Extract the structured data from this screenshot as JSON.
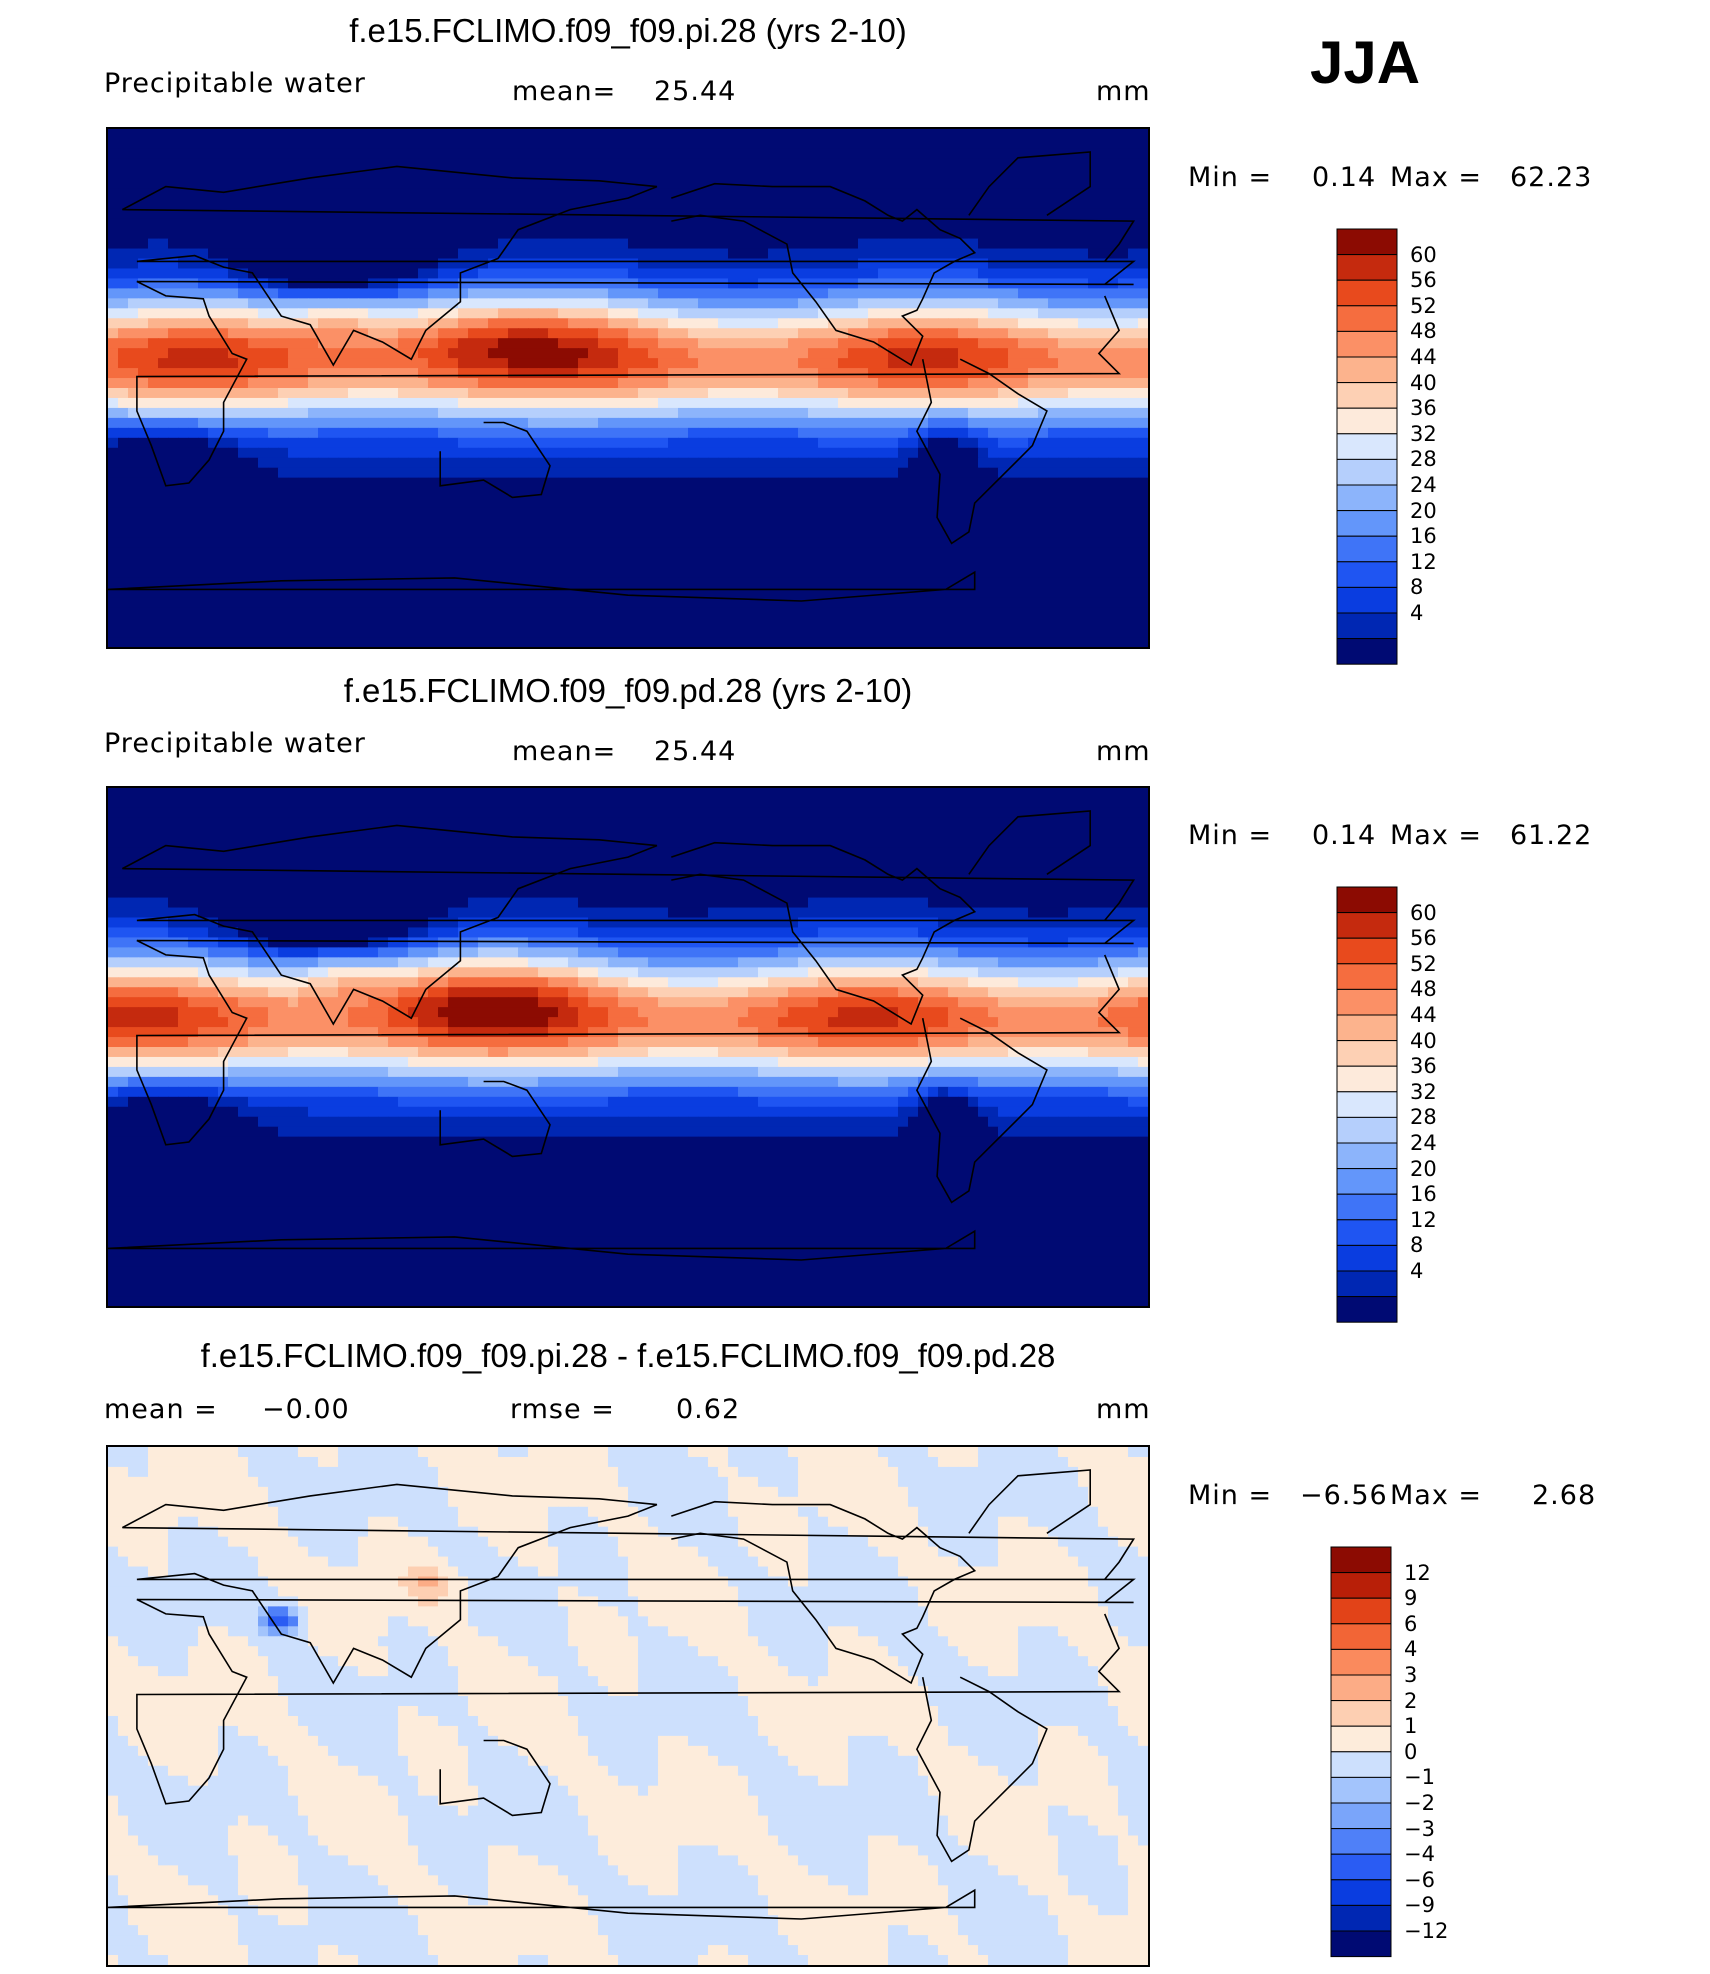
{
  "season": "JJA",
  "units": "mm",
  "colors": {
    "abs_scale": [
      "#000a73",
      "#0027b3",
      "#0a3de0",
      "#1f55f2",
      "#3f74f7",
      "#6396fa",
      "#8cb4fb",
      "#b5cffc",
      "#d9e7fd",
      "#fdeadb",
      "#fdd0b4",
      "#fcb38d",
      "#fb9066",
      "#f56d3f",
      "#e84a1d",
      "#c52a0e",
      "#8c0b02"
    ],
    "diff_scale": [
      "#000a73",
      "#0027b3",
      "#0a3de0",
      "#2a5cf3",
      "#4f80f8",
      "#7aa5fa",
      "#a3c4fc",
      "#cde0fd",
      "#fdecdb",
      "#fdcfb2",
      "#fcac86",
      "#fa8a5d",
      "#f26536",
      "#e24318",
      "#b81f08",
      "#8c0b02"
    ]
  },
  "panels": [
    {
      "title": "f.e15.FCLIMO.f09_f09.pi.28 (yrs 2-10)",
      "left_label": "Precipitable  water",
      "center_label": "mean=",
      "center_value": "25.44",
      "right_label": "mm",
      "min_label": "Min  =",
      "min_value": "0.14",
      "max_label": "Max  =",
      "max_value": "62.23"
    },
    {
      "title": "f.e15.FCLIMO.f09_f09.pd.28 (yrs 2-10)",
      "left_label": "Precipitable  water",
      "center_label": "mean=",
      "center_value": "25.44",
      "right_label": "mm",
      "min_label": "Min  =",
      "min_value": "0.14",
      "max_label": "Max  =",
      "max_value": "61.22"
    },
    {
      "title": "f.e15.FCLIMO.f09_f09.pi.28 - f.e15.FCLIMO.f09_f09.pd.28",
      "left_label": "mean  =",
      "left_value": "−0.00",
      "center_label": "rmse  =",
      "center_value": "0.62",
      "right_label": "mm",
      "min_label": "Min  =",
      "min_value": "−6.56",
      "max_label": "Max  =",
      "max_value": "2.68"
    }
  ],
  "chart_data": [
    {
      "type": "heatmap",
      "title": "f.e15.FCLIMO.f09_f09.pi.28 (yrs 2-10)",
      "field": "Precipitable water",
      "units": "mm",
      "mean": 25.44,
      "min": 0.14,
      "max": 62.23,
      "colorbar_levels": [
        "60",
        "56",
        "52",
        "48",
        "44",
        "40",
        "36",
        "32",
        "28",
        "24",
        "20",
        "16",
        "12",
        "8",
        "4"
      ]
    },
    {
      "type": "heatmap",
      "title": "f.e15.FCLIMO.f09_f09.pd.28 (yrs 2-10)",
      "field": "Precipitable water",
      "units": "mm",
      "mean": 25.44,
      "min": 0.14,
      "max": 61.22,
      "colorbar_levels": [
        "60",
        "56",
        "52",
        "48",
        "44",
        "40",
        "36",
        "32",
        "28",
        "24",
        "20",
        "16",
        "12",
        "8",
        "4"
      ]
    },
    {
      "type": "heatmap",
      "title": "f.e15.FCLIMO.f09_f09.pi.28 - f.e15.FCLIMO.f09_f09.pd.28",
      "units": "mm",
      "mean": -0.0,
      "rmse": 0.62,
      "min": -6.56,
      "max": 2.68,
      "colorbar_levels": [
        "12",
        "9",
        "6",
        "4",
        "3",
        "2",
        "1",
        "0",
        "−1",
        "−2",
        "−3",
        "−4",
        "−6",
        "−9",
        "−12"
      ]
    }
  ]
}
